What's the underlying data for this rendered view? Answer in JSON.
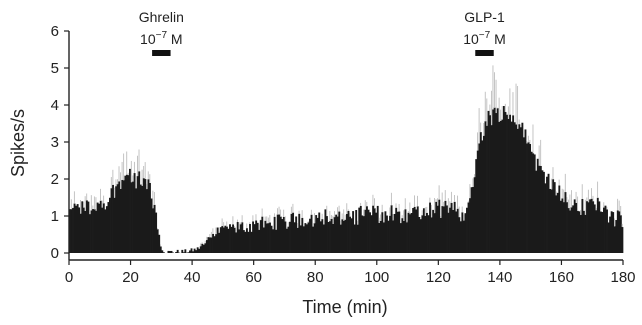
{
  "chart_data": {
    "type": "bar",
    "xlabel": "Time (min)",
    "ylabel": "Spikes/s",
    "xlim": [
      0,
      180
    ],
    "ylim": [
      0,
      6
    ],
    "xticks": [
      0,
      20,
      40,
      60,
      80,
      100,
      120,
      140,
      160,
      180
    ],
    "yticks": [
      0,
      1,
      2,
      3,
      4,
      5,
      6
    ],
    "annotations": [
      {
        "label": "Ghrelin",
        "conc_base": "10",
        "conc_exp": "−7",
        "conc_unit": "M",
        "x_range": [
          27,
          33
        ]
      },
      {
        "label": "GLP-1",
        "conc_base": "10",
        "conc_exp": "−7",
        "conc_unit": "M",
        "x_range": [
          132,
          138
        ]
      }
    ],
    "bin_width_min": 0.5,
    "profile_x": [
      0,
      2,
      5,
      8,
      10,
      13,
      16,
      18,
      20,
      23,
      26,
      28,
      29,
      30,
      31,
      32,
      33,
      35,
      38,
      40,
      42,
      43,
      45,
      48,
      50,
      55,
      60,
      65,
      70,
      75,
      80,
      85,
      90,
      95,
      100,
      105,
      110,
      115,
      120,
      125,
      128,
      130,
      132,
      134,
      136,
      138,
      140,
      142,
      144,
      146,
      148,
      150,
      152,
      155,
      158,
      160,
      162,
      165,
      168,
      170,
      173,
      176,
      180
    ],
    "profile_y": [
      1.1,
      1.15,
      1.25,
      1.2,
      1.3,
      1.5,
      1.9,
      2.1,
      2.05,
      1.95,
      1.9,
      1.1,
      0.5,
      0.15,
      0.04,
      0.02,
      0.03,
      0.03,
      0.04,
      0.07,
      0.12,
      0.2,
      0.4,
      0.55,
      0.6,
      0.7,
      0.75,
      0.82,
      0.85,
      0.9,
      0.95,
      1.0,
      0.9,
      1.05,
      1.05,
      1.1,
      1.0,
      1.1,
      1.2,
      1.15,
      1.05,
      1.3,
      2.2,
      3.2,
      3.6,
      3.75,
      3.8,
      3.8,
      3.7,
      3.5,
      3.2,
      2.8,
      2.4,
      2.1,
      1.8,
      1.6,
      1.4,
      1.3,
      1.2,
      1.45,
      1.3,
      0.95,
      0.9
    ],
    "noise_amplitude": 0.25
  }
}
